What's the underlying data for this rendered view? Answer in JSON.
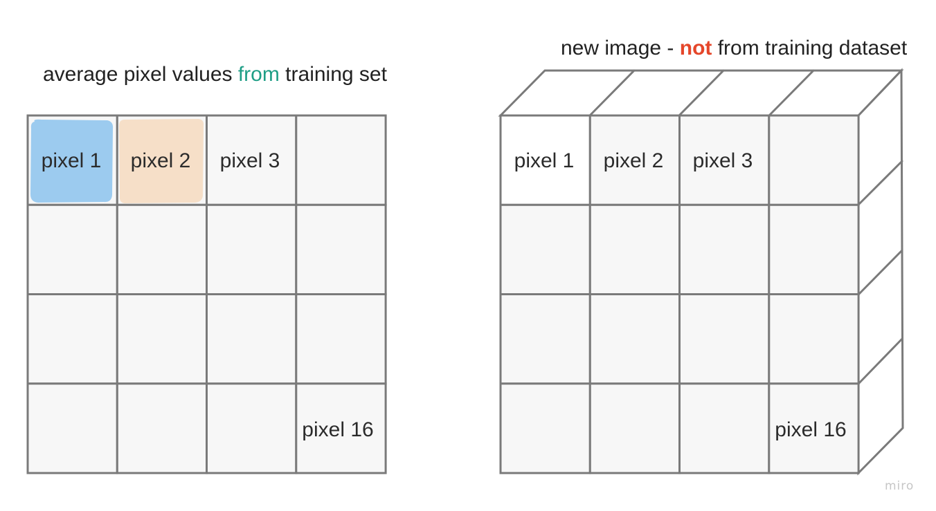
{
  "left_panel": {
    "title_before": "average pixel values ",
    "title_highlight": "from",
    "title_after": " training set",
    "highlight_color": "#1f9e86",
    "pixel_1": "pixel 1",
    "pixel_2": "pixel 2",
    "pixel_3": "pixel 3",
    "pixel_16": "pixel 16",
    "pixel_1_fill": "#9ccbef",
    "pixel_2_fill": "#f6dfc8"
  },
  "right_panel": {
    "title_before": "new image - ",
    "title_highlight": "not",
    "title_after": " from training dataset",
    "highlight_color": "#e5462a",
    "pixel_1": "pixel 1",
    "pixel_2": "pixel 2",
    "pixel_3": "pixel 3",
    "pixel_16": "pixel 16"
  },
  "watermark": "miro"
}
